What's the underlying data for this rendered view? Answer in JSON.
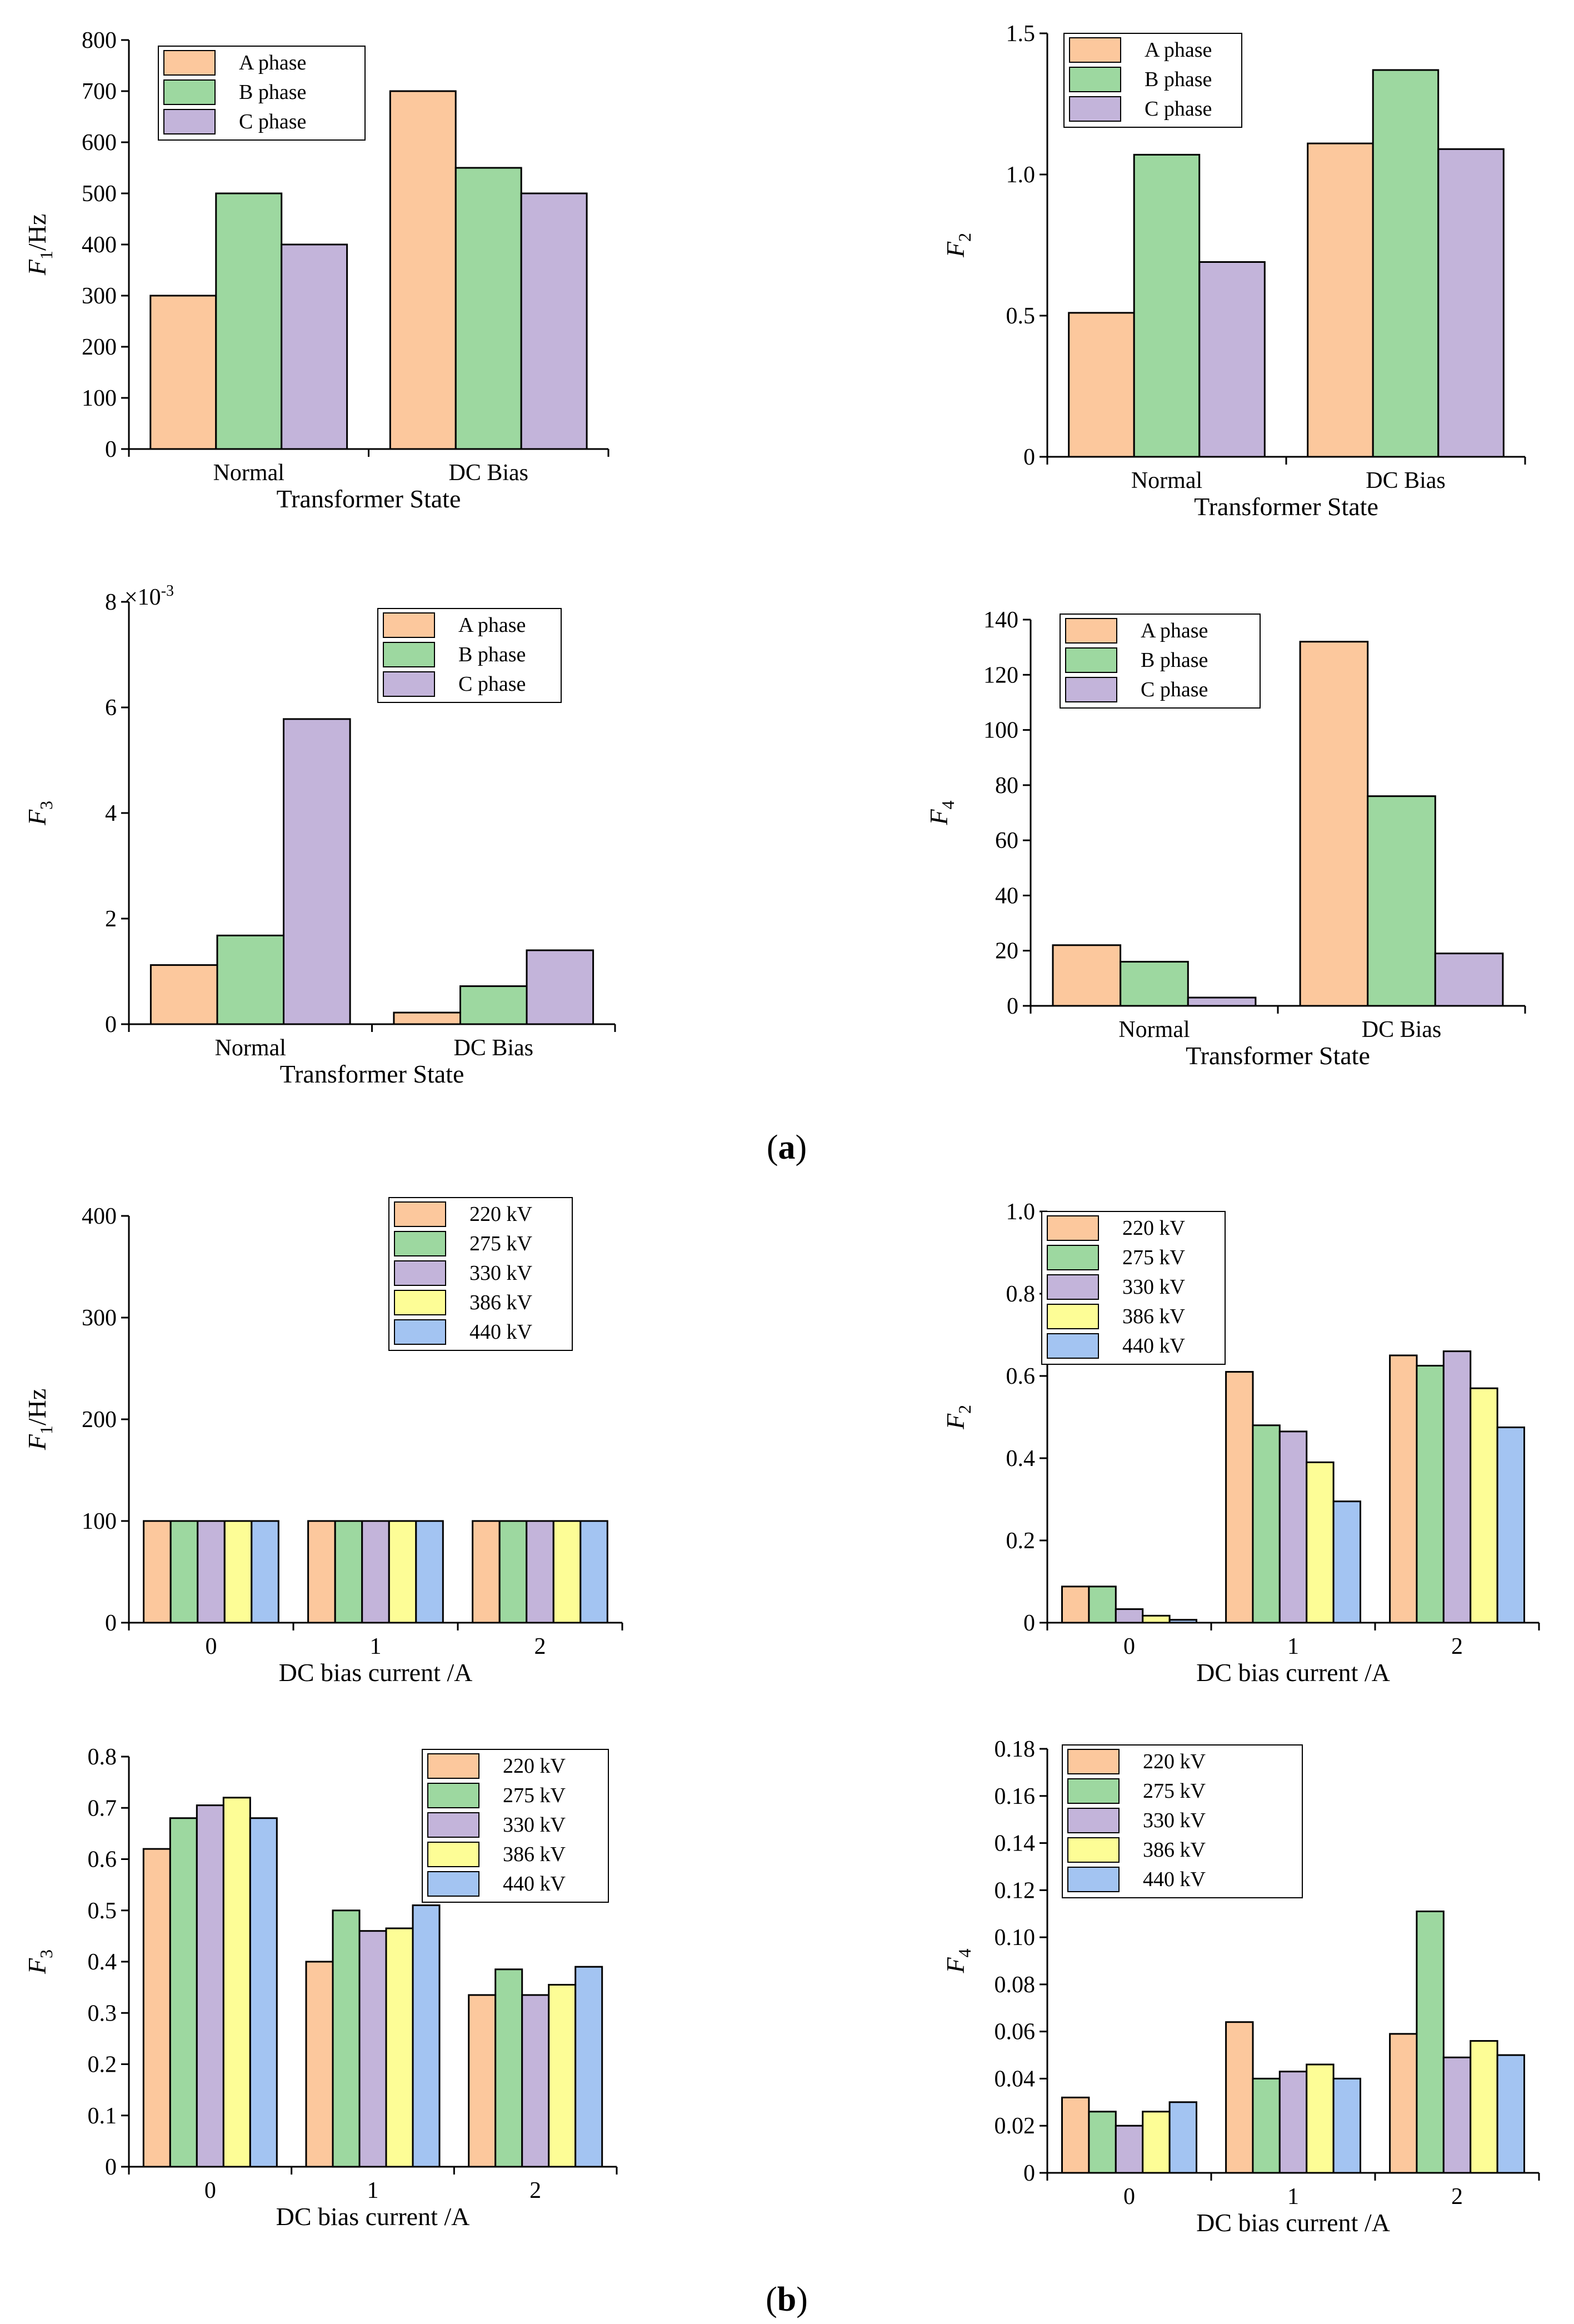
{
  "figure": {
    "panel_labels": {
      "a": "(a)",
      "b": "(b)"
    }
  },
  "colors": {
    "A phase": "#FCC89D",
    "B phase": "#9DD8A0",
    "C phase": "#C3B4DA",
    "220 kV": "#FCC89D",
    "275 kV": "#9DD8A0",
    "330 kV": "#C3B4DA",
    "386 kV": "#FDFD96",
    "440 kV": "#A3C4F2"
  },
  "chart_data": [
    {
      "id": "a1",
      "type": "bar",
      "title": "",
      "xlabel": "Transformer State",
      "ylabel": {
        "main": "F",
        "sub": "1",
        "suffix": "/Hz"
      },
      "categories": [
        "Normal",
        "DC Bias"
      ],
      "ylim": [
        0,
        800
      ],
      "yticks": [
        0,
        100,
        200,
        300,
        400,
        500,
        600,
        700,
        800
      ],
      "legend_position": "top-left",
      "series": [
        {
          "name": "A phase",
          "values": [
            300,
            700
          ]
        },
        {
          "name": "B phase",
          "values": [
            500,
            550
          ]
        },
        {
          "name": "C phase",
          "values": [
            400,
            500
          ]
        }
      ]
    },
    {
      "id": "a2",
      "type": "bar",
      "title": "",
      "xlabel": "Transformer State",
      "ylabel": {
        "main": "F",
        "sub": "2",
        "suffix": ""
      },
      "categories": [
        "Normal",
        "DC Bias"
      ],
      "ylim": [
        0,
        1.5
      ],
      "yticks": [
        0,
        0.5,
        1.0,
        1.5
      ],
      "ytick_labels": [
        "0",
        "0.5",
        "1.0",
        "1.5"
      ],
      "legend_position": "top-left",
      "series": [
        {
          "name": "A phase",
          "values": [
            0.51,
            1.11
          ]
        },
        {
          "name": "B phase",
          "values": [
            1.07,
            1.37
          ]
        },
        {
          "name": "C phase",
          "values": [
            0.69,
            1.09
          ]
        }
      ]
    },
    {
      "id": "a3",
      "type": "bar",
      "title": "",
      "xlabel": "Transformer State",
      "ylabel": {
        "main": "F",
        "sub": "3",
        "suffix": ""
      },
      "axis_multiplier": "×10",
      "axis_multiplier_exp": "-3",
      "categories": [
        "Normal",
        "DC Bias"
      ],
      "ylim": [
        0,
        8
      ],
      "yticks": [
        0,
        2,
        4,
        6,
        8
      ],
      "legend_position": "top-right",
      "series": [
        {
          "name": "A phase",
          "values": [
            1.12,
            0.22
          ]
        },
        {
          "name": "B phase",
          "values": [
            1.68,
            0.72
          ]
        },
        {
          "name": "C phase",
          "values": [
            5.78,
            1.4
          ]
        }
      ]
    },
    {
      "id": "a4",
      "type": "bar",
      "title": "",
      "xlabel": "Transformer State",
      "ylabel": {
        "main": "F",
        "sub": "4",
        "suffix": ""
      },
      "categories": [
        "Normal",
        "DC Bias"
      ],
      "ylim": [
        0,
        140
      ],
      "yticks": [
        0,
        20,
        40,
        60,
        80,
        100,
        120,
        140
      ],
      "legend_position": "top-left",
      "series": [
        {
          "name": "A phase",
          "values": [
            22,
            132
          ]
        },
        {
          "name": "B phase",
          "values": [
            16,
            76
          ]
        },
        {
          "name": "C phase",
          "values": [
            3,
            19
          ]
        }
      ]
    },
    {
      "id": "b1",
      "type": "bar",
      "title": "",
      "xlabel": "DC bias current /A",
      "ylabel": {
        "main": "F",
        "sub": "1",
        "suffix": "/Hz"
      },
      "categories": [
        "0",
        "1",
        "2"
      ],
      "ylim": [
        0,
        400
      ],
      "yticks": [
        0,
        100,
        200,
        300,
        400
      ],
      "legend_position": "top-right",
      "series": [
        {
          "name": "220 kV",
          "values": [
            100,
            100,
            100
          ]
        },
        {
          "name": "275 kV",
          "values": [
            100,
            100,
            100
          ]
        },
        {
          "name": "330 kV",
          "values": [
            100,
            100,
            100
          ]
        },
        {
          "name": "386 kV",
          "values": [
            100,
            100,
            100
          ]
        },
        {
          "name": "440 kV",
          "values": [
            100,
            100,
            100
          ]
        }
      ]
    },
    {
      "id": "b2",
      "type": "bar",
      "title": "",
      "xlabel": "DC bias current /A",
      "ylabel": {
        "main": "F",
        "sub": "2",
        "suffix": ""
      },
      "categories": [
        "0",
        "1",
        "2"
      ],
      "ylim": [
        0,
        1.0
      ],
      "yticks": [
        0,
        0.2,
        0.4,
        0.6,
        0.8,
        1.0
      ],
      "ytick_labels": [
        "0",
        "0.2",
        "0.4",
        "0.6",
        "0.8",
        "1.0"
      ],
      "legend_position": "top-left",
      "series": [
        {
          "name": "220 kV",
          "values": [
            0.088,
            0.61,
            0.65
          ]
        },
        {
          "name": "275 kV",
          "values": [
            0.088,
            0.48,
            0.625
          ]
        },
        {
          "name": "330 kV",
          "values": [
            0.033,
            0.465,
            0.66
          ]
        },
        {
          "name": "386 kV",
          "values": [
            0.017,
            0.39,
            0.57
          ]
        },
        {
          "name": "440 kV",
          "values": [
            0.007,
            0.295,
            0.475
          ]
        }
      ]
    },
    {
      "id": "b3",
      "type": "bar",
      "title": "",
      "xlabel": "DC bias current /A",
      "ylabel": {
        "main": "F",
        "sub": "3",
        "suffix": ""
      },
      "categories": [
        "0",
        "1",
        "2"
      ],
      "ylim": [
        0,
        0.8
      ],
      "yticks": [
        0,
        0.1,
        0.2,
        0.3,
        0.4,
        0.5,
        0.6,
        0.7,
        0.8
      ],
      "ytick_labels": [
        "0",
        "0.1",
        "0.2",
        "0.3",
        "0.4",
        "0.5",
        "0.6",
        "0.7",
        "0.8"
      ],
      "legend_position": "top-right",
      "series": [
        {
          "name": "220 kV",
          "values": [
            0.62,
            0.4,
            0.335
          ]
        },
        {
          "name": "275 kV",
          "values": [
            0.68,
            0.5,
            0.385
          ]
        },
        {
          "name": "330 kV",
          "values": [
            0.705,
            0.46,
            0.335
          ]
        },
        {
          "name": "386 kV",
          "values": [
            0.72,
            0.465,
            0.355
          ]
        },
        {
          "name": "440 kV",
          "values": [
            0.68,
            0.51,
            0.39
          ]
        }
      ]
    },
    {
      "id": "b4",
      "type": "bar",
      "title": "",
      "xlabel": "DC bias current /A",
      "ylabel": {
        "main": "F",
        "sub": "4",
        "suffix": ""
      },
      "categories": [
        "0",
        "1",
        "2"
      ],
      "ylim": [
        0,
        0.18
      ],
      "yticks": [
        0,
        0.02,
        0.04,
        0.06,
        0.08,
        0.1,
        0.12,
        0.14,
        0.16,
        0.18
      ],
      "ytick_labels": [
        "0",
        "0.02",
        "0.04",
        "0.06",
        "0.08",
        "0.10",
        "0.12",
        "0.14",
        "0.16",
        "0.18"
      ],
      "legend_position": "top-left",
      "series": [
        {
          "name": "220 kV",
          "values": [
            0.032,
            0.064,
            0.059
          ]
        },
        {
          "name": "275 kV",
          "values": [
            0.026,
            0.04,
            0.111
          ]
        },
        {
          "name": "330 kV",
          "values": [
            0.02,
            0.043,
            0.049
          ]
        },
        {
          "name": "386 kV",
          "values": [
            0.026,
            0.046,
            0.056
          ]
        },
        {
          "name": "440 kV",
          "values": [
            0.03,
            0.04,
            0.05
          ]
        }
      ]
    }
  ]
}
